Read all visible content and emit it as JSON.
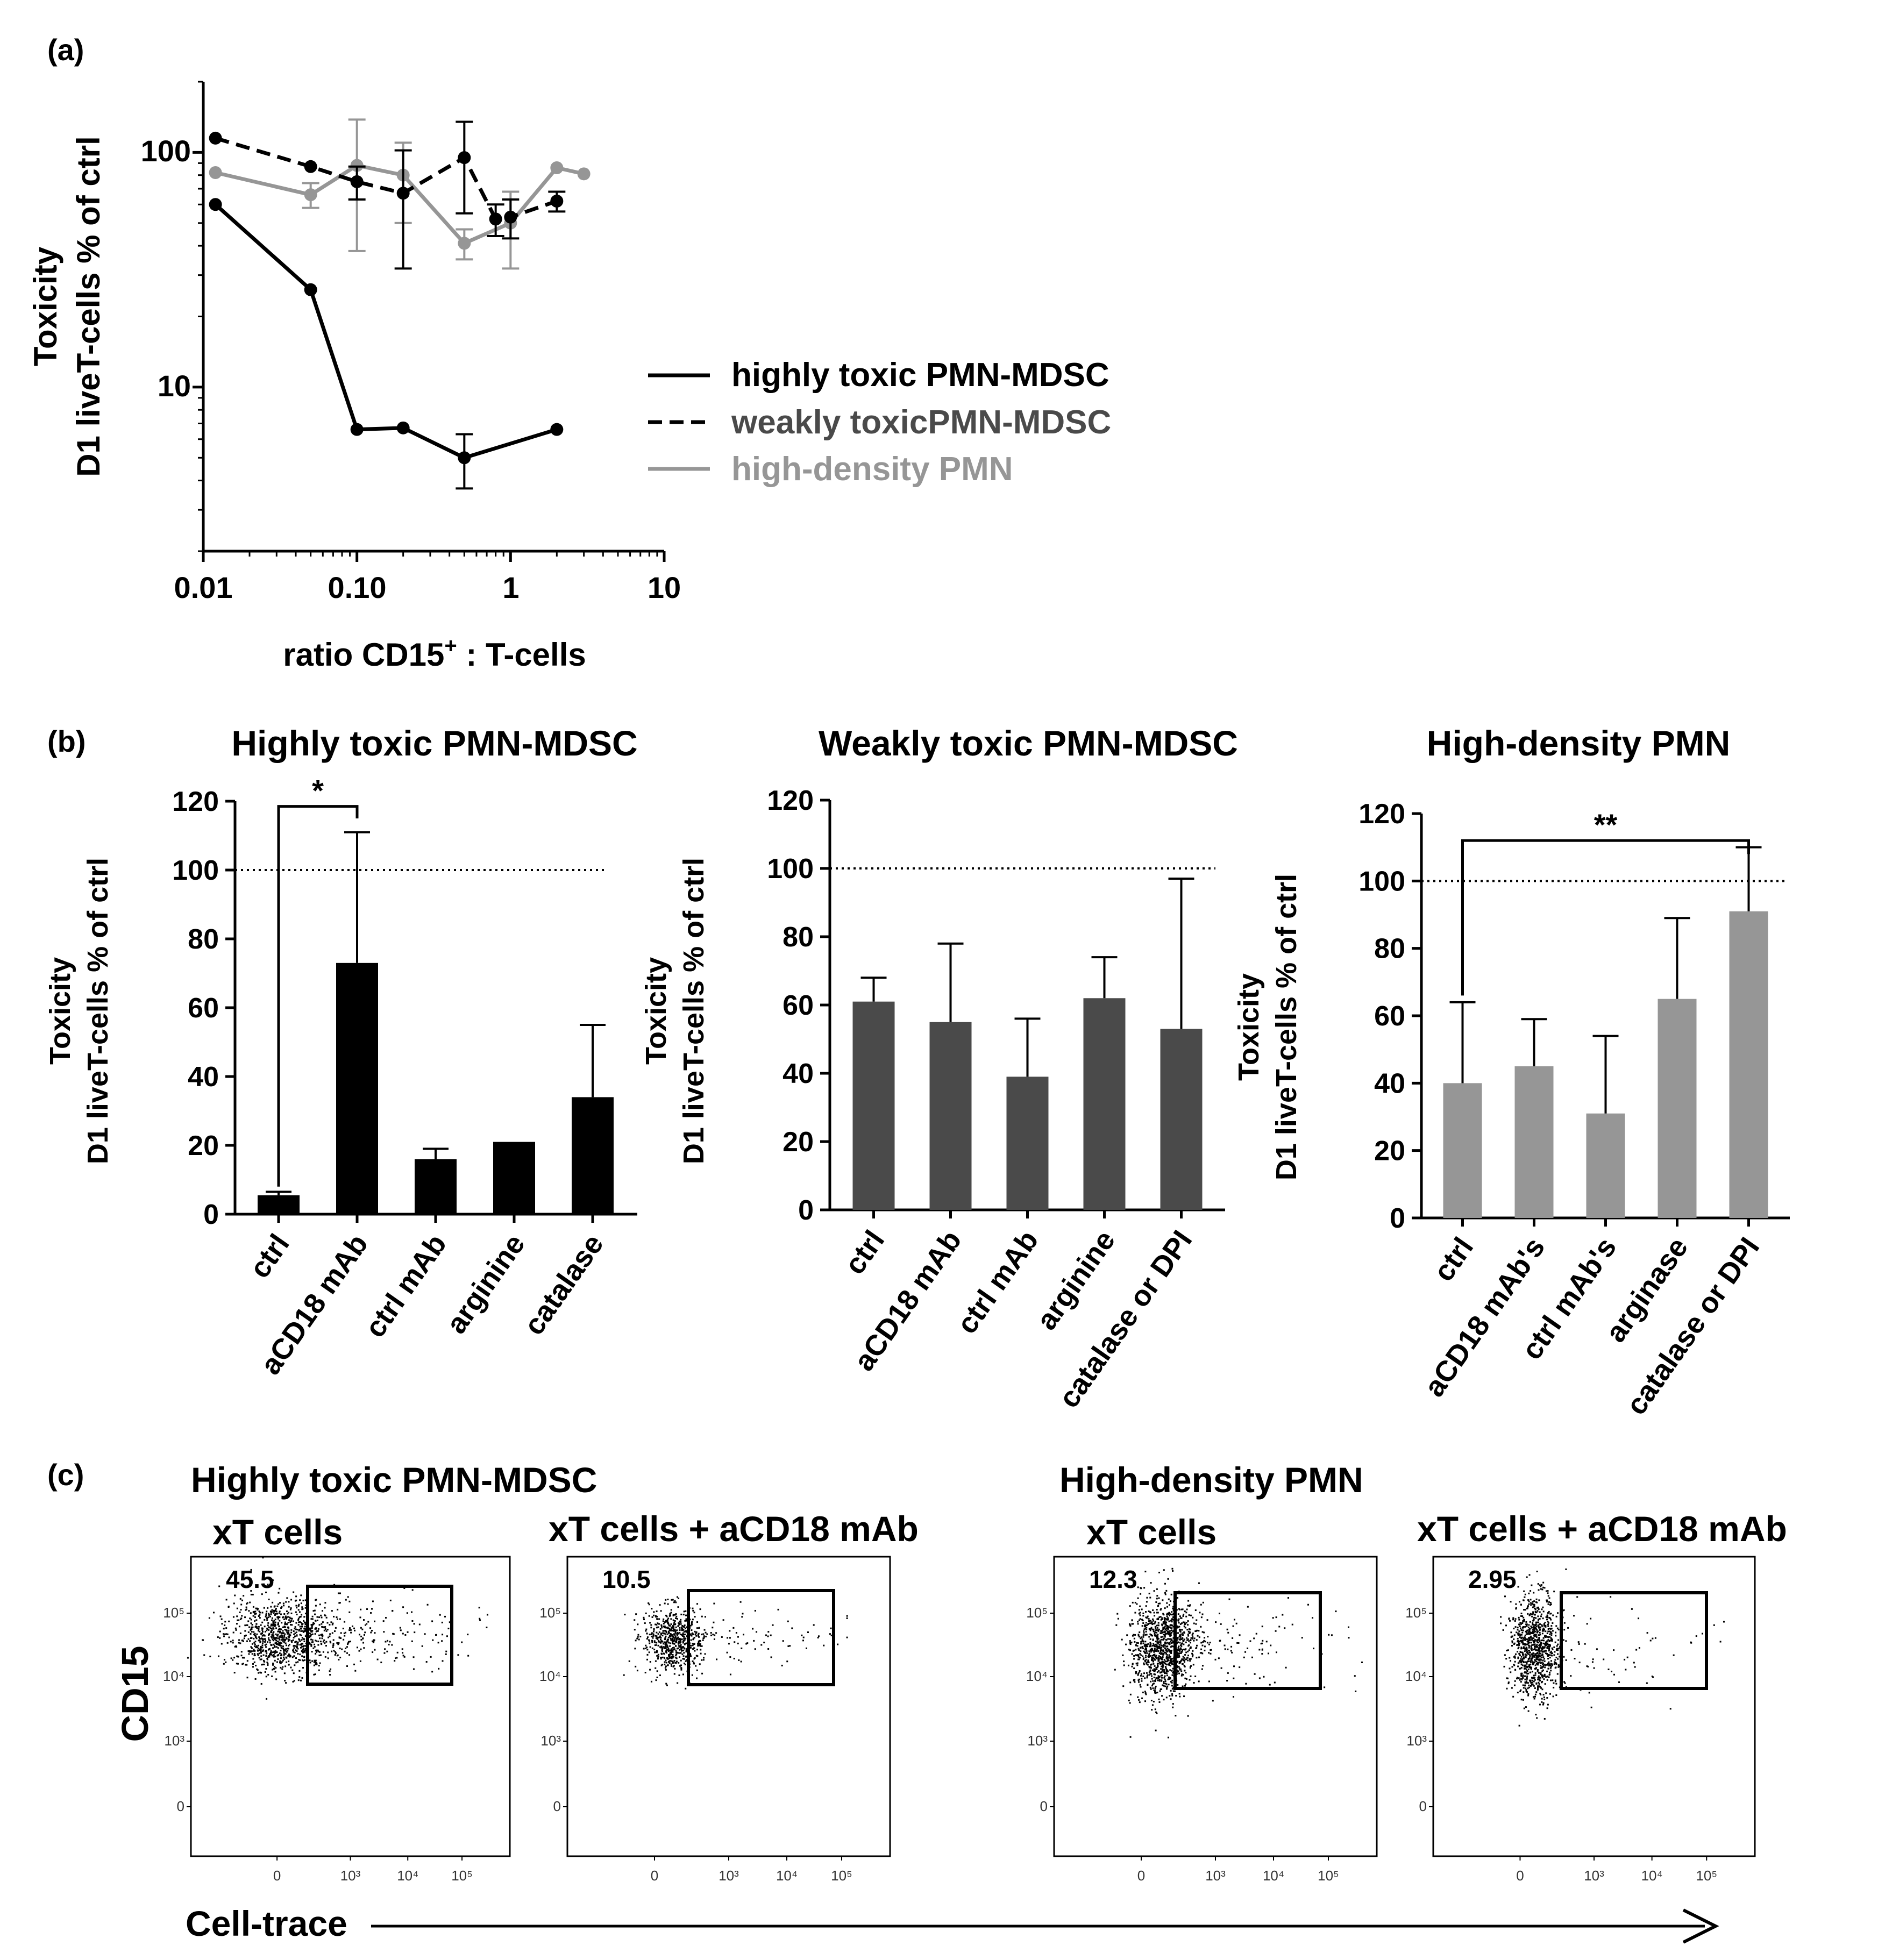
{
  "colors": {
    "black": "#000000",
    "darkgray": "#4a4a4a",
    "gray": "#969696",
    "lightgray": "#a8a8a8"
  },
  "panel_labels": {
    "a": "(a)",
    "b": "(b)",
    "c": "(c)"
  },
  "chart_data": [
    {
      "id": "a",
      "type": "line",
      "xscale": "log",
      "yscale": "log",
      "xlim": [
        0.01,
        10
      ],
      "ylim": [
        2,
        200
      ],
      "x_ticks": [
        "0.01",
        "0.10",
        "1",
        "10"
      ],
      "y_ticks": [
        "100",
        "10"
      ],
      "xlabel_main": "ratio CD15",
      "xlabel_sup": "+",
      "xlabel_tail": " : T-cells",
      "ylabel_line1": "Toxicity",
      "ylabel_line2": "D1 liveT-cells % of ctrl",
      "series": [
        {
          "name": "highly toxic PMN-MDSC",
          "style": "solid",
          "color": "#000000",
          "x": [
            0.012,
            0.05,
            0.1,
            0.2,
            0.5,
            2.0
          ],
          "y": [
            60,
            26,
            6.6,
            6.7,
            5.0,
            6.6
          ],
          "err": [
            0,
            0,
            0,
            0,
            1.3,
            0
          ]
        },
        {
          "name": "weakly toxicPMN-MDSC",
          "style": "dashed",
          "color": "#000000",
          "x": [
            0.012,
            0.05,
            0.1,
            0.2,
            0.5,
            0.8,
            1.0,
            2.0
          ],
          "y": [
            115,
            87,
            75,
            67,
            95,
            52,
            53,
            62
          ],
          "err": [
            0,
            0,
            12,
            35,
            40,
            8,
            10,
            6
          ]
        },
        {
          "name": "high-density PMN",
          "style": "solid",
          "color": "#969696",
          "x": [
            0.012,
            0.05,
            0.1,
            0.2,
            0.5,
            1.0,
            2.0,
            3.0
          ],
          "y": [
            82,
            66,
            88,
            80,
            41,
            50,
            86,
            81
          ],
          "err": [
            0,
            8,
            50,
            30,
            6,
            18,
            0,
            0
          ]
        }
      ]
    },
    {
      "id": "b1",
      "type": "bar",
      "title": "Highly toxic PMN-MDSC",
      "color": "#000000",
      "categories": [
        "ctrl",
        "aCD18 mAb",
        "ctrl mAb",
        "arginine",
        "catalase"
      ],
      "values": [
        5.5,
        73,
        16,
        21,
        34
      ],
      "errors": [
        1,
        38,
        3,
        0,
        21
      ],
      "ylim": [
        0,
        120
      ],
      "yticks": [
        "0",
        "20",
        "40",
        "60",
        "80",
        "100",
        "120"
      ],
      "ylabel_line1": "Toxicity",
      "ylabel_line2": "D1 liveT-cells % of ctrl",
      "reference_line": 100,
      "significance": {
        "label": "*",
        "from": 0,
        "to": 1
      }
    },
    {
      "id": "b2",
      "type": "bar",
      "title": "Weakly toxic PMN-MDSC",
      "color": "#4a4a4a",
      "categories": [
        "ctrl",
        "aCD18 mAb",
        "ctrl mAb",
        "arginine",
        "catalase or DPI"
      ],
      "values": [
        61,
        55,
        39,
        62,
        53
      ],
      "errors": [
        7,
        23,
        17,
        12,
        44
      ],
      "ylim": [
        0,
        120
      ],
      "yticks": [
        "0",
        "20",
        "40",
        "60",
        "80",
        "100",
        "120"
      ],
      "ylabel_line1": "Toxicity",
      "ylabel_line2": "D1 liveT-cells % of ctrl",
      "reference_line": 100
    },
    {
      "id": "b3",
      "type": "bar",
      "title": "High-density PMN",
      "color": "#969696",
      "categories": [
        "ctrl",
        "aCD18 mAb's",
        "ctrl mAb's",
        "arginase",
        "catalase or DPI"
      ],
      "values": [
        40,
        45,
        31,
        65,
        91
      ],
      "errors": [
        24,
        14,
        23,
        24,
        19
      ],
      "ylim": [
        0,
        120
      ],
      "yticks": [
        "0",
        "20",
        "40",
        "60",
        "80",
        "100",
        "120"
      ],
      "ylabel_line1": "Toxicity",
      "ylabel_line2": "D1 liveT-cells % of ctrl",
      "reference_line": 100,
      "significance": {
        "label": "**",
        "from": 0,
        "to": 4
      }
    },
    {
      "id": "c",
      "type": "scatter",
      "group_titles": [
        "Highly toxic PMN-MDSC",
        "High-density PMN"
      ],
      "ylabel": "CD15",
      "xlabel": "Cell-trace",
      "y_ticks": [
        "10⁵",
        "10⁴",
        "10³",
        "0"
      ],
      "x_ticks": [
        "0",
        "10³",
        "10⁴",
        "10⁵"
      ],
      "plots": [
        {
          "subtitle": "xT cells",
          "gate_percent": "45.5"
        },
        {
          "subtitle": "xT cells + aCD18 mAb",
          "gate_percent": "10.5"
        },
        {
          "subtitle": "xT cells",
          "gate_percent": "12.3"
        },
        {
          "subtitle": "xT cells + aCD18 mAb",
          "gate_percent": "2.95"
        }
      ]
    }
  ]
}
